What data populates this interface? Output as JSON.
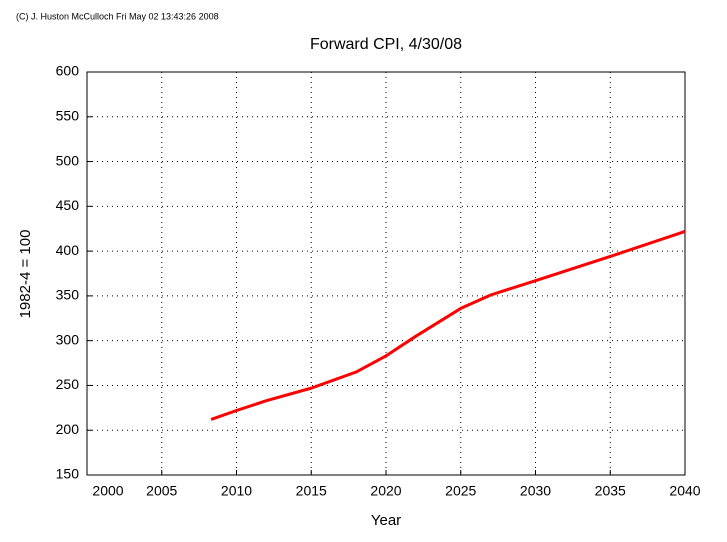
{
  "chart_data": {
    "type": "line",
    "credit": "(C) J. Huston McCulloch Fri May 02 13:43:26 2008",
    "title": "Forward CPI, 4/30/08",
    "x_label": "Year",
    "y_label": "1982-4 = 100",
    "x": [
      2008.3,
      2010,
      2012,
      2015,
      2018,
      2020,
      2022,
      2025,
      2027,
      2030,
      2035,
      2040
    ],
    "series": [
      {
        "color": "#ff0000",
        "values": [
          212,
          222,
          233,
          247,
          265,
          283,
          305,
          336,
          351,
          367,
          394,
          422
        ]
      }
    ],
    "xlim": [
      2000,
      2040
    ],
    "xticks": [
      2000,
      2005,
      2010,
      2015,
      2020,
      2025,
      2030,
      2035,
      2040
    ],
    "ylim": [
      150,
      600
    ],
    "yticks": [
      150,
      200,
      250,
      300,
      350,
      400,
      450,
      500,
      550,
      600
    ],
    "grid": true
  }
}
